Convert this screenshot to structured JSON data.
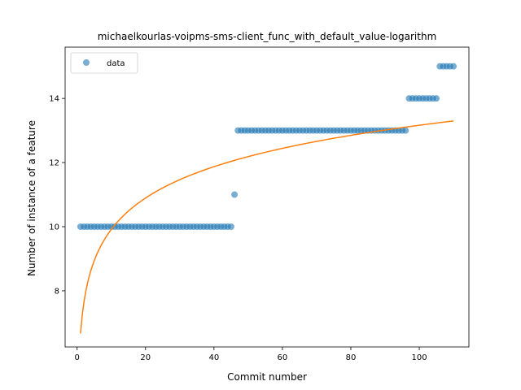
{
  "chart_data": {
    "type": "scatter",
    "title": "michaelkourlas-voipms-sms-client_func_with_default_value-logarithm",
    "xlabel": "Commit number",
    "ylabel": "Number of instance of a feature",
    "xlim": [
      -3.5,
      114.5
    ],
    "ylim": [
      6.25,
      15.6
    ],
    "x_ticks": [
      0,
      20,
      40,
      60,
      80,
      100
    ],
    "y_ticks": [
      8,
      10,
      12,
      14
    ],
    "legend": {
      "placement": "top-left",
      "entries": [
        "data"
      ]
    },
    "colors": {
      "data": "#1f77b4",
      "fit": "#ff7f0e"
    },
    "series": [
      {
        "name": "data",
        "kind": "scatter",
        "segments": [
          {
            "x_from": 1,
            "x_to": 45,
            "y": 10
          },
          {
            "x_from": 46,
            "x_to": 46,
            "y": 11
          },
          {
            "x_from": 47,
            "x_to": 96,
            "y": 13
          },
          {
            "x_from": 97,
            "x_to": 105,
            "y": 14
          },
          {
            "x_from": 106,
            "x_to": 110,
            "y": 15
          }
        ]
      },
      {
        "kind": "line",
        "model": "logarithmic",
        "a": 6.67,
        "b": 1.41,
        "x_range": [
          1,
          110
        ]
      }
    ]
  }
}
